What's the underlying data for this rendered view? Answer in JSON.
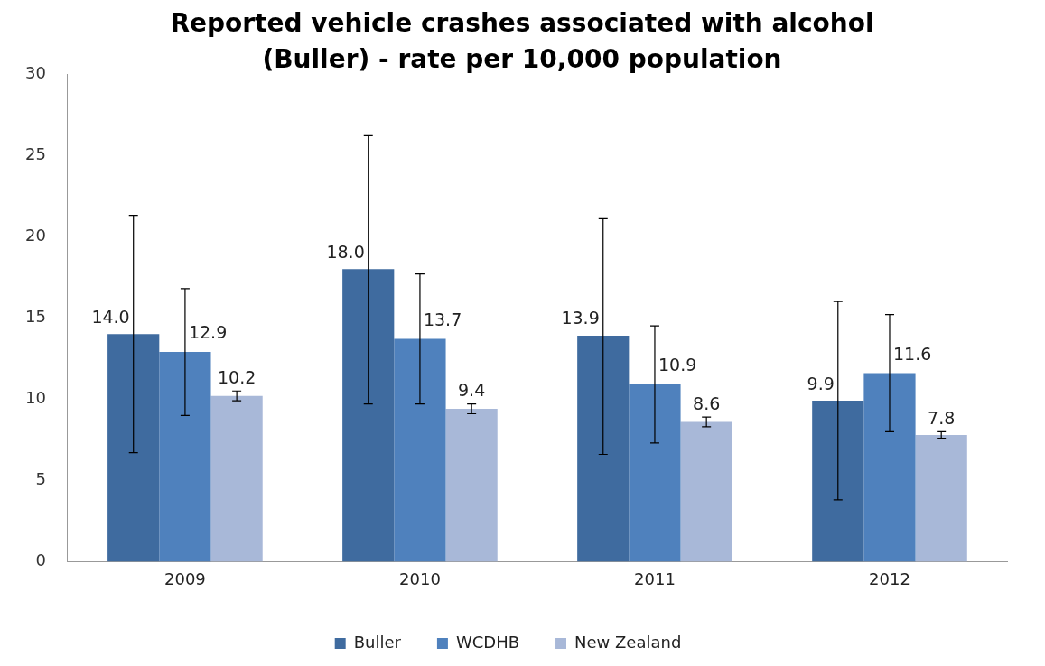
{
  "chart_data": {
    "type": "bar",
    "title": "Reported vehicle crashes associated with alcohol (Buller) - rate per 10,000 population",
    "categories": [
      "2009",
      "2010",
      "2011",
      "2012"
    ],
    "series": [
      {
        "name": "Buller",
        "color": "#3f6b9f",
        "values": [
          14.0,
          18.0,
          13.9,
          9.9
        ],
        "value_labels": [
          "14.0",
          "18.0",
          "13.9",
          "9.9"
        ],
        "errors": [
          [
            6.7,
            21.3
          ],
          [
            9.7,
            26.2
          ],
          [
            6.6,
            21.1
          ],
          [
            3.8,
            16.0
          ]
        ]
      },
      {
        "name": "WCDHB",
        "color": "#4f81bd",
        "values": [
          12.9,
          13.7,
          10.9,
          11.6
        ],
        "value_labels": [
          "12.9",
          "13.7",
          "10.9",
          "11.6"
        ],
        "errors": [
          [
            9.0,
            16.8
          ],
          [
            9.7,
            17.7
          ],
          [
            7.3,
            14.5
          ],
          [
            8.0,
            15.2
          ]
        ]
      },
      {
        "name": "New Zealand",
        "color": "#a8b8d8",
        "values": [
          10.2,
          9.4,
          8.6,
          7.8
        ],
        "value_labels": [
          "10.2",
          "9.4",
          "8.6",
          "7.8"
        ],
        "errors": [
          [
            9.9,
            10.5
          ],
          [
            9.1,
            9.7
          ],
          [
            8.3,
            8.9
          ],
          [
            7.6,
            8.0
          ]
        ]
      }
    ],
    "ylim": [
      0,
      30
    ],
    "yticks": [
      0,
      5,
      10,
      15,
      20,
      25,
      30
    ],
    "grid": false,
    "legend": "bottom"
  }
}
